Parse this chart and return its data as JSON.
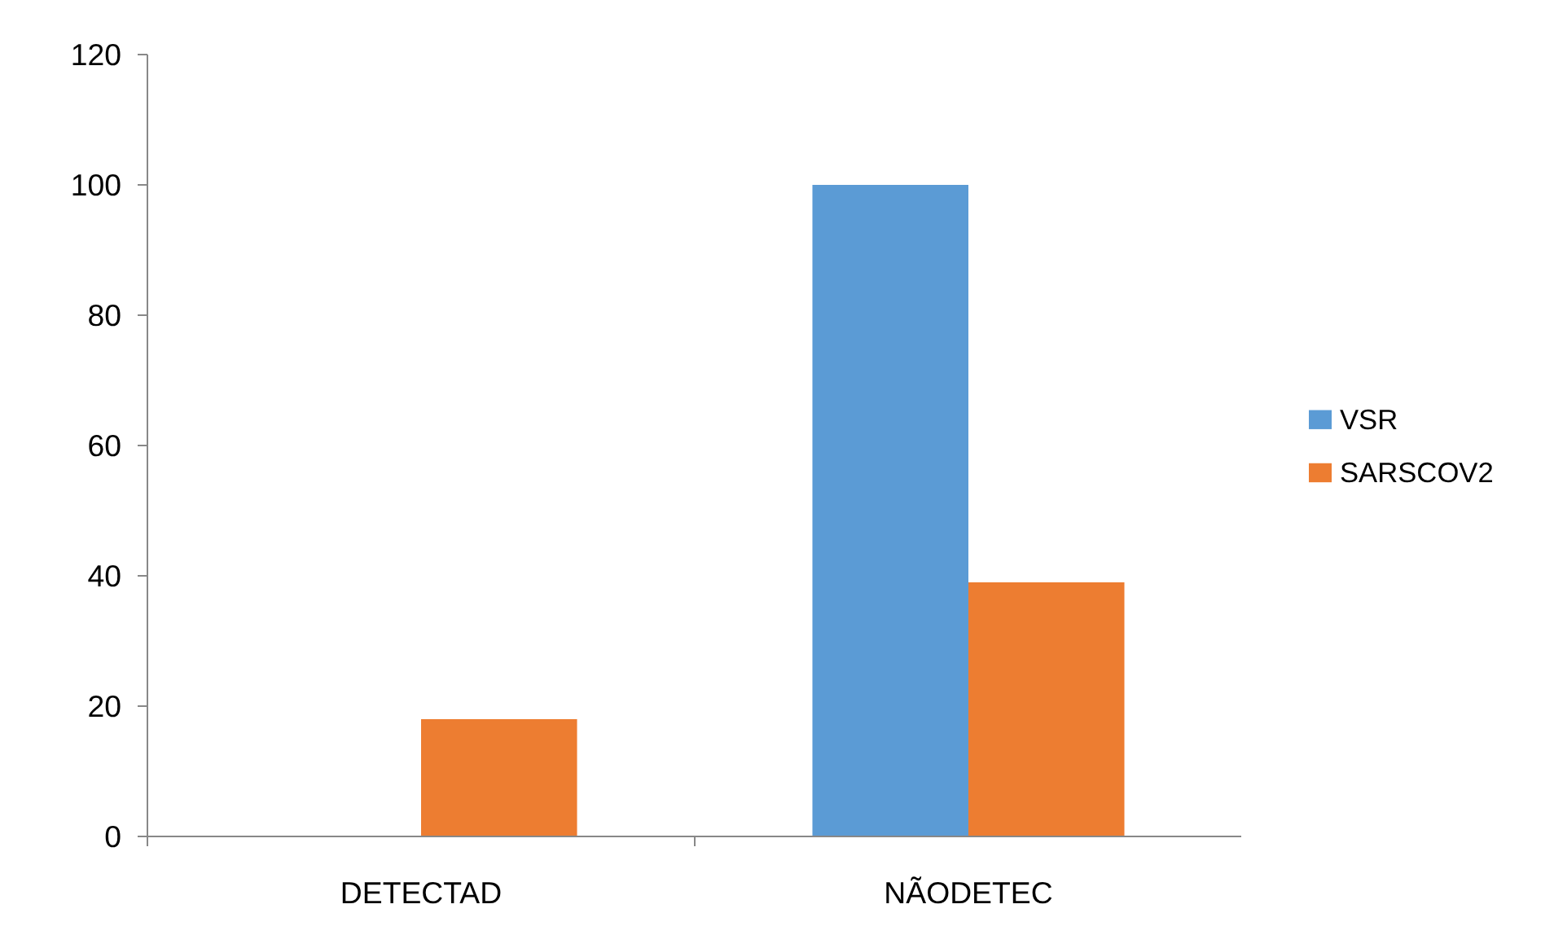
{
  "chart_data": {
    "type": "bar",
    "categories": [
      "DETECTAD",
      "NÃODETEC"
    ],
    "series": [
      {
        "name": "VSR",
        "color": "#5b9bd5",
        "values": [
          0,
          100
        ]
      },
      {
        "name": "SARSCOV2",
        "color": "#ed7d31",
        "values": [
          18,
          39
        ]
      }
    ],
    "ylim": [
      0,
      120
    ],
    "yticks": [
      0,
      20,
      40,
      60,
      80,
      100,
      120
    ],
    "grid": false,
    "legend": "right"
  }
}
